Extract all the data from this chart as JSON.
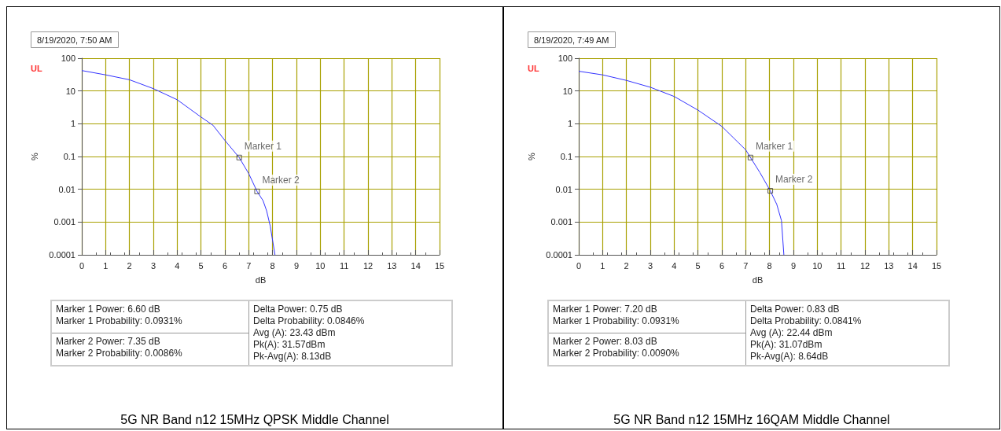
{
  "chart_data": [
    {
      "type": "line",
      "title": "8/19/2020, 7:50 AM",
      "xlabel": "dB",
      "ylabel": "%",
      "log": "y",
      "grid": true,
      "legend": false,
      "xlim": [
        0,
        15
      ],
      "xticks": [
        0,
        1,
        2,
        3,
        4,
        5,
        6,
        7,
        8,
        9,
        10,
        11,
        12,
        13,
        14,
        15
      ],
      "ylim": [
        0.0001,
        100
      ],
      "yticks": [
        0.0001,
        0.001,
        0.01,
        0.1,
        1,
        10,
        100
      ],
      "series": [
        {
          "color": "#3333ff",
          "marker": "none",
          "x": [
            0,
            1,
            2,
            3,
            4,
            5,
            5.5,
            6,
            6.6,
            7,
            7.35,
            7.6,
            7.75,
            7.9,
            8.1
          ],
          "values": [
            42,
            31,
            22,
            11.8,
            5.4,
            1.6,
            0.9,
            0.31,
            0.0931,
            0.03,
            0.0086,
            0.0045,
            0.0022,
            0.00076,
            0.0001
          ]
        },
        {
          "type": "scatter",
          "name": "Marker 1",
          "color": "#333333",
          "marker": "square",
          "x": [
            6.6
          ],
          "values": [
            0.0931
          ]
        },
        {
          "type": "scatter",
          "name": "Marker 2",
          "color": "#333333",
          "marker": "square",
          "x": [
            7.35
          ],
          "values": [
            0.0086
          ]
        }
      ],
      "annotations": [
        "UL",
        "Marker 1 Power: 6.60 dB",
        "Marker 1 Probability: 0.0931%",
        "Marker 2 Power: 7.35 dB",
        "Marker 2 Probability: 0.0086%",
        "Delta Power: 0.75 dB",
        "Delta Probability: 0.0846%",
        "Avg (A): 23.43 dBm",
        "Pk(A): 31.57dBm",
        "Pk-Avg(A): 8.13dB",
        "5G NR Band n12 15MHz QPSK Middle Channel"
      ]
    },
    {
      "type": "line",
      "title": "8/19/2020, 7:49 AM",
      "xlabel": "dB",
      "ylabel": "%",
      "log": "y",
      "grid": true,
      "legend": false,
      "xlim": [
        0,
        15
      ],
      "xticks": [
        0,
        1,
        2,
        3,
        4,
        5,
        6,
        7,
        8,
        9,
        10,
        11,
        12,
        13,
        14,
        15
      ],
      "ylim": [
        0.0001,
        100
      ],
      "yticks": [
        0.0001,
        0.001,
        0.01,
        0.1,
        1,
        10,
        100
      ],
      "series": [
        {
          "color": "#3333ff",
          "marker": "none",
          "x": [
            0,
            1,
            2,
            3,
            4,
            5,
            6,
            7,
            7.2,
            7.6,
            8.03,
            8.3,
            8.5,
            8.6
          ],
          "values": [
            40,
            31,
            21,
            13,
            6.8,
            2.6,
            0.83,
            0.16,
            0.0931,
            0.032,
            0.009,
            0.0035,
            0.0011,
            0.0001
          ]
        },
        {
          "type": "scatter",
          "name": "Marker 1",
          "color": "#333333",
          "marker": "square",
          "x": [
            7.2
          ],
          "values": [
            0.0931
          ]
        },
        {
          "type": "scatter",
          "name": "Marker 2",
          "color": "#333333",
          "marker": "square",
          "x": [
            8.03
          ],
          "values": [
            0.009
          ]
        }
      ],
      "annotations": [
        "UL",
        "Marker 1 Power: 7.20 dB",
        "Marker 1 Probability: 0.0931%",
        "Marker 2 Power: 8.03 dB",
        "Marker 2 Probability: 0.0090%",
        "Delta Power: 0.83 dB",
        "Delta Probability: 0.0841%",
        "Avg (A): 22.44 dBm",
        "Pk(A): 31.07dBm",
        "Pk-Avg(A): 8.64dB",
        "5G NR Band n12 15MHz 16QAM Middle Channel"
      ]
    }
  ]
}
